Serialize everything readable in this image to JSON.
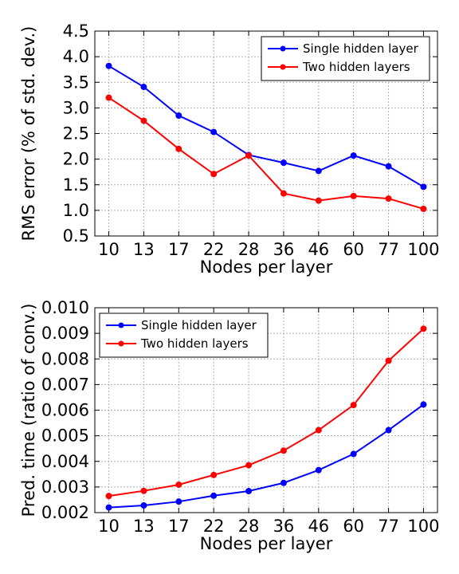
{
  "chart_data": [
    {
      "type": "line",
      "categories": [
        "10",
        "13",
        "17",
        "22",
        "28",
        "36",
        "46",
        "60",
        "77",
        "100"
      ],
      "xlabel": "Nodes per layer",
      "ylabel": "RMS error (% of std. dev.)",
      "ylim": [
        0.5,
        4.5
      ],
      "yticks": [
        "0.5",
        "1.0",
        "1.5",
        "2.0",
        "2.5",
        "3.0",
        "3.5",
        "4.0",
        "4.5"
      ],
      "grid": true,
      "legend_position": "top-right",
      "series": [
        {
          "name": "Single hidden layer",
          "color": "#0000ff",
          "values": [
            3.82,
            3.41,
            2.85,
            2.53,
            2.08,
            1.93,
            1.77,
            2.07,
            1.86,
            1.46
          ]
        },
        {
          "name": "Two hidden layers",
          "color": "#ff0000",
          "values": [
            3.2,
            2.75,
            2.2,
            1.71,
            2.07,
            1.33,
            1.19,
            1.28,
            1.23,
            1.03
          ]
        }
      ]
    },
    {
      "type": "line",
      "categories": [
        "10",
        "13",
        "17",
        "22",
        "28",
        "36",
        "46",
        "60",
        "77",
        "100"
      ],
      "xlabel": "Nodes per layer",
      "ylabel": "Pred. time (ratio of conv.)",
      "ylim": [
        0.002,
        0.01
      ],
      "yticks": [
        "0.002",
        "0.003",
        "0.004",
        "0.005",
        "0.006",
        "0.007",
        "0.008",
        "0.009",
        "0.010"
      ],
      "grid": true,
      "legend_position": "top-left",
      "series": [
        {
          "name": "Single hidden layer",
          "color": "#0000ff",
          "values": [
            0.0022,
            0.00228,
            0.00243,
            0.00266,
            0.00284,
            0.00316,
            0.00366,
            0.00429,
            0.00522,
            0.00622
          ]
        },
        {
          "name": "Two hidden layers",
          "color": "#ff0000",
          "values": [
            0.00265,
            0.00285,
            0.00309,
            0.00347,
            0.00385,
            0.00442,
            0.00522,
            0.0062,
            0.00793,
            0.00918
          ]
        }
      ]
    }
  ]
}
